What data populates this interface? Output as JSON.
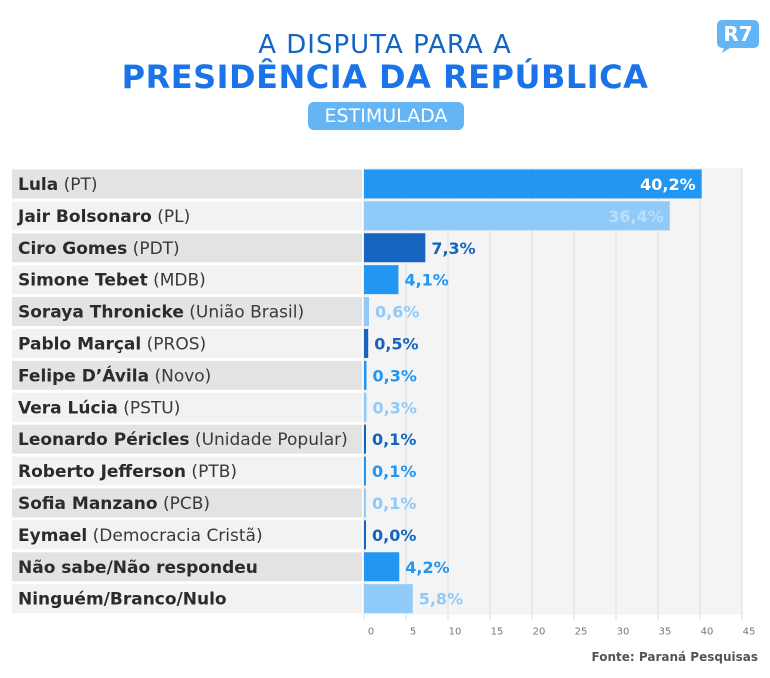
{
  "header": {
    "title_line1": "A DISPUTA PARA A",
    "title_line2": "PRESIDÊNCIA DA REPÚBLICA",
    "badge": "ESTIMULADA",
    "logo": "R7"
  },
  "source": "Fonte: Paraná Pesquisas",
  "colors": {
    "dark": "#1565c0",
    "medium": "#2196f3",
    "light": "#90caf9",
    "label_bg_dark": "#e3e3e3",
    "label_bg_light": "#f2f2f2"
  },
  "chart_data": {
    "type": "bar",
    "orientation": "horizontal",
    "xlim": [
      0,
      45
    ],
    "xticks": [
      "0",
      "5",
      "10",
      "15",
      "20",
      "25",
      "30",
      "35",
      "40",
      "45"
    ],
    "grid": true,
    "bars": [
      {
        "name": "Lula",
        "party": "(PT)",
        "value": 40.2,
        "label": "40,2%",
        "color": "medium"
      },
      {
        "name": "Jair Bolsonaro",
        "party": "(PL)",
        "value": 36.4,
        "label": "36,4%",
        "color": "light"
      },
      {
        "name": "Ciro Gomes",
        "party": "(PDT)",
        "value": 7.3,
        "label": "7,3%",
        "color": "dark"
      },
      {
        "name": "Simone Tebet",
        "party": "(MDB)",
        "value": 4.1,
        "label": "4,1%",
        "color": "medium"
      },
      {
        "name": "Soraya Thronicke",
        "party": "(União Brasil)",
        "value": 0.6,
        "label": "0,6%",
        "color": "light"
      },
      {
        "name": "Pablo Marçal",
        "party": "(PROS)",
        "value": 0.5,
        "label": "0,5%",
        "color": "dark"
      },
      {
        "name": "Felipe D’Ávila",
        "party": "(Novo)",
        "value": 0.3,
        "label": "0,3%",
        "color": "medium"
      },
      {
        "name": "Vera Lúcia",
        "party": "(PSTU)",
        "value": 0.3,
        "label": "0,3%",
        "color": "light"
      },
      {
        "name": "Leonardo Péricles",
        "party": "(Unidade Popular)",
        "value": 0.1,
        "label": "0,1%",
        "color": "dark"
      },
      {
        "name": "Roberto Jefferson",
        "party": "(PTB)",
        "value": 0.1,
        "label": "0,1%",
        "color": "medium"
      },
      {
        "name": "Sofia Manzano",
        "party": "(PCB)",
        "value": 0.1,
        "label": "0,1%",
        "color": "light"
      },
      {
        "name": "Eymael",
        "party": "(Democracia Cristã)",
        "value": 0.0,
        "label": "0,0%",
        "color": "dark"
      },
      {
        "name": "Não sabe/Não respondeu",
        "party": "",
        "value": 4.2,
        "label": "4,2%",
        "color": "medium"
      },
      {
        "name": "Ninguém/Branco/Nulo",
        "party": "",
        "value": 5.8,
        "label": "5,8%",
        "color": "light"
      }
    ]
  }
}
